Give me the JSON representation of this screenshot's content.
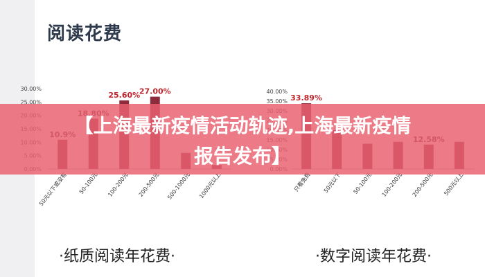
{
  "page": {
    "title": "阅读花费",
    "banner_line1": "【上海最新疫情活动轨迹,上海最新疫情",
    "banner_line2": "报告发布】"
  },
  "colors": {
    "bar": "#8e2a3c",
    "banner": "#e86070",
    "highlight_label": "#c0242c",
    "title": "#2e3a4c"
  },
  "chart_data": [
    {
      "type": "bar",
      "title": "·纸质阅读年花费·",
      "categories": [
        "50元以下或没有",
        "50-100元",
        "100-200元",
        "200-500元",
        "500-1000元",
        "1000元以上"
      ],
      "values": [
        10.9,
        18.8,
        25.6,
        27.0,
        6.0,
        1.5
      ],
      "data_labels": [
        "10.9%",
        "18.80%",
        "25.60%",
        "27.00%",
        "",
        ""
      ],
      "highlight": [
        false,
        false,
        true,
        true,
        false,
        false
      ],
      "ylim": [
        0,
        30
      ],
      "yticks": [
        "0.00%",
        "5.00%",
        "10.00%",
        "15.00%",
        "20.00%",
        "25.00%",
        "30.00%"
      ],
      "grid": false
    },
    {
      "type": "bar",
      "title": "·数字阅读年花费·",
      "categories": [
        "只看免费",
        "50元以下",
        "50-100元",
        "100-200元",
        "200-500元",
        "500元以上"
      ],
      "values": [
        33.89,
        20.0,
        13.0,
        14.0,
        12.58,
        14.0
      ],
      "data_labels": [
        "33.89%",
        "",
        "",
        "",
        "12.58%",
        ""
      ],
      "highlight": [
        true,
        false,
        false,
        false,
        false,
        false
      ],
      "ylim": [
        0,
        40
      ],
      "yticks": [
        "0.00%",
        "5.00%",
        "10.00%",
        "15.00%",
        "20.00%",
        "25.00%",
        "30.00%",
        "35.00%",
        "40.00%"
      ],
      "grid": false
    }
  ]
}
